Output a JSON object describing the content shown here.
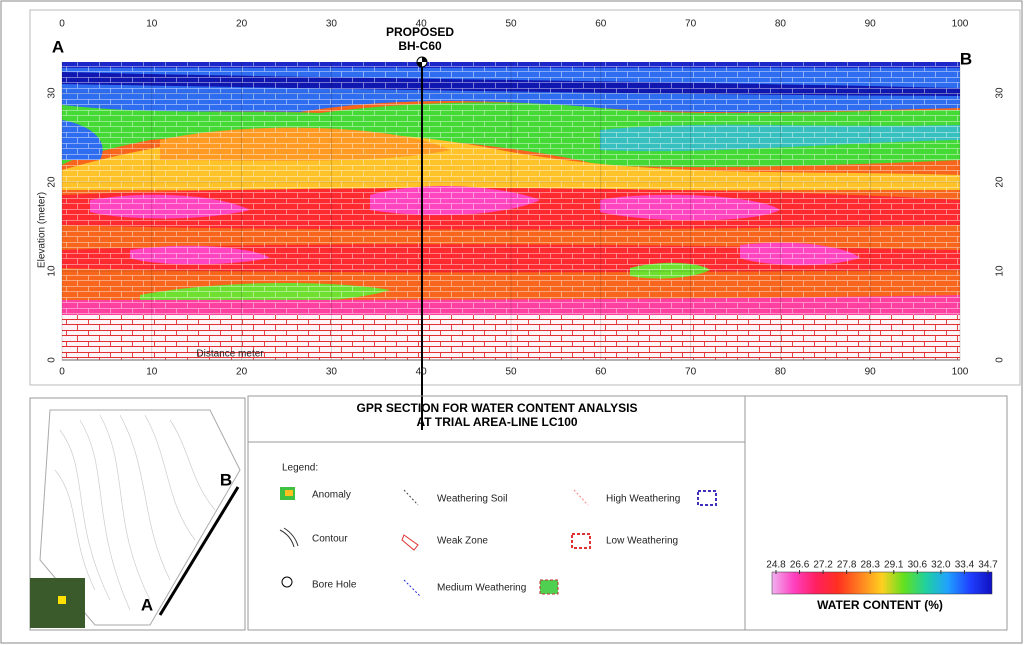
{
  "section": {
    "label_a": "A",
    "label_b": "B",
    "borehole": [
      "PROPOSED",
      "BH-C60"
    ],
    "x_ticks": [
      0,
      10,
      20,
      30,
      40,
      50,
      60,
      70,
      80,
      90,
      100
    ],
    "y_ticks": [
      0,
      10,
      20,
      30
    ],
    "y_axis_label": "Elevation (meter)",
    "x_axis_label": "Distance meter"
  },
  "title": [
    "GPR SECTION FOR WATER CONTENT ANALYSIS",
    "AT TRIAL AREA-LINE LC100"
  ],
  "legend": {
    "heading": "Legend:",
    "items": [
      "Anomaly",
      "Contour",
      "Bore Hole",
      "Weathering Soil",
      "Weak Zone",
      "Medium Weathering",
      "High Weathering",
      "Low Weathering"
    ]
  },
  "colorbar": {
    "labels": [
      "24.8",
      "26.6",
      "27.2",
      "27.8",
      "28.3",
      "29.1",
      "30.6",
      "32.0",
      "33.4",
      "34.7"
    ],
    "title": "WATER CONTENT (%)"
  },
  "map": {
    "label_a": "A",
    "label_b": "B"
  }
}
